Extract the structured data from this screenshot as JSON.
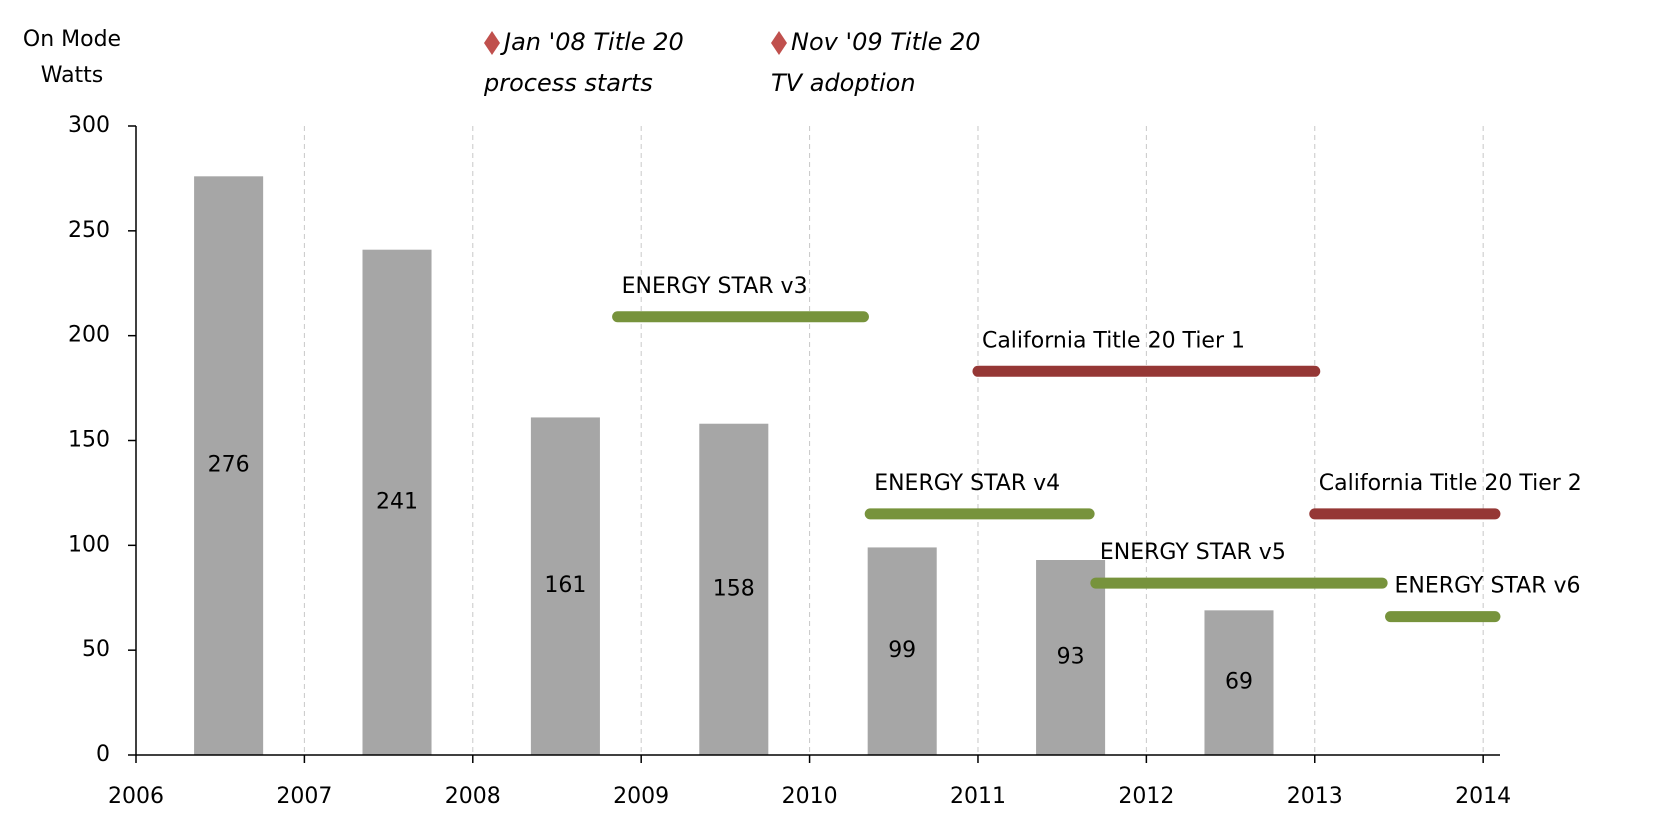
{
  "chart_data": {
    "type": "bar",
    "y_label": [
      "On Mode",
      "Watts"
    ],
    "annotations": [
      {
        "lines": [
          "Jan '08 Title 20",
          "process starts"
        ]
      },
      {
        "lines": [
          "Nov '09 Title 20",
          "TV adoption"
        ]
      }
    ],
    "annotation_color": "#c0504d",
    "x": [
      2006.55,
      2007.55,
      2008.55,
      2009.55,
      2010.55,
      2011.55,
      2012.55
    ],
    "values": [
      276,
      241,
      161,
      158,
      99,
      93,
      69
    ],
    "color": "#a6a6a6",
    "ranges": [
      {
        "name": "ENERGY STAR v3",
        "start": 2008.86,
        "end": 2010.32,
        "value": 209,
        "color": "#77933c",
        "label_color": "#5f6f2c"
      },
      {
        "name": "California Title 20 Tier 1",
        "start": 2011,
        "end": 2013,
        "value": 183,
        "color": "#953735",
        "label_color": "#c0143c"
      },
      {
        "name": "ENERGY STAR v4",
        "start": 2010.36,
        "end": 2011.66,
        "value": 115,
        "color": "#77933c",
        "label_color": "#5f6f2c"
      },
      {
        "name": "California Title 20 Tier 2",
        "start": 2013,
        "end": 2014.07,
        "value": 115,
        "color": "#953735",
        "label_color": "#c0143c"
      },
      {
        "name": "ENERGY STAR v5",
        "start": 2011.7,
        "end": 2013.4,
        "value": 82,
        "color": "#77933c",
        "label_color": "#5f6f2c"
      },
      {
        "name": "ENERGY STAR v6",
        "start": 2013.45,
        "end": 2014.07,
        "value": 66,
        "color": "#77933c",
        "label_color": "#5f6f2c"
      }
    ],
    "xlim": [
      2006,
      2014.1
    ],
    "xticks": [
      2006,
      2007,
      2008,
      2009,
      2010,
      2011,
      2012,
      2013,
      2014
    ],
    "ylim": [
      0,
      300
    ],
    "yticks": [
      0,
      50,
      100,
      150,
      200,
      250,
      300
    ],
    "grid": "x"
  }
}
